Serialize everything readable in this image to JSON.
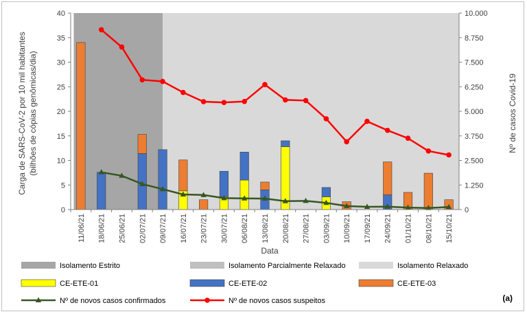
{
  "chart_data": {
    "type": "bar+line",
    "panel_label": "(a)",
    "xlabel": "Data",
    "ylabel_left_line1": "Carga de SARS-CoV-2 por 10 mil habitantes",
    "ylabel_left_line2": "(bilhões de cópias genômicas/dia)",
    "ylabel_right": "Nº de casos Covid-19",
    "ylim_left": [
      0,
      40
    ],
    "yticks_left": [
      "0",
      "5",
      "10",
      "15",
      "20",
      "25",
      "30",
      "35",
      "40"
    ],
    "ylim_right": [
      0,
      10000
    ],
    "yticks_right": [
      "0",
      "1.250",
      "2.500",
      "3.750",
      "5.000",
      "6.250",
      "7.500",
      "8.750",
      "10.000"
    ],
    "categories": [
      "11/06/21",
      "18/06/21",
      "25/06/21",
      "02/07/21",
      "09/07/21",
      "16/07/21",
      "23/07/21",
      "30/07/21",
      "06/08/21",
      "13/08/21",
      "20/08/21",
      "27/08/21",
      "03/09/21",
      "10/09/21",
      "17/09/21",
      "24/09/21",
      "01/10/21",
      "08/10/21",
      "15/10/21"
    ],
    "periods": [
      {
        "name": "Isolamento Estrito",
        "color": "#a6a6a6",
        "from": 0,
        "to": 4
      },
      {
        "name": "Isolamento Parcialmente Relaxado",
        "color": "#bfbfbf",
        "from": 4,
        "to": 4
      },
      {
        "name": "Isolamento Relaxado",
        "color": "#d9d9d9",
        "from": 4,
        "to": 18
      }
    ],
    "stacked_series": [
      {
        "name": "CE-ETE-01",
        "color": "#ffff00",
        "values": [
          0,
          0,
          0,
          0,
          0,
          3.8,
          0,
          2.6,
          6.0,
          0,
          12.8,
          0,
          2.6,
          0,
          0,
          0,
          0,
          0,
          0
        ]
      },
      {
        "name": "CE-ETE-02",
        "color": "#4472c4",
        "values": [
          0,
          7.6,
          0,
          11.4,
          12.2,
          0,
          0,
          5.2,
          5.7,
          4.0,
          1.2,
          0,
          1.9,
          0,
          0,
          3.0,
          0,
          0,
          0
        ]
      },
      {
        "name": "CE-ETE-03",
        "color": "#ed7d31",
        "values": [
          34.0,
          0,
          0,
          3.9,
          0,
          6.3,
          2.0,
          0,
          0,
          1.6,
          0,
          0,
          0,
          1.6,
          0,
          6.7,
          3.5,
          7.4,
          2.0
        ]
      }
    ],
    "line_series": [
      {
        "name": "Nº de novos casos confirmados",
        "color": "#375623",
        "marker": "triangle",
        "axis": "right",
        "values": [
          null,
          1900,
          1720,
          1300,
          1040,
          770,
          740,
          580,
          570,
          560,
          430,
          440,
          340,
          180,
          140,
          150,
          100,
          80,
          130
        ]
      },
      {
        "name": "Nº de novos casos suspeitos",
        "color": "#ff0000",
        "marker": "circle",
        "axis": "right",
        "values": [
          null,
          9150,
          8270,
          6600,
          6520,
          5960,
          5490,
          5450,
          5500,
          6360,
          5580,
          5550,
          4620,
          3450,
          4490,
          4030,
          3630,
          2980,
          2780
        ]
      }
    ]
  }
}
